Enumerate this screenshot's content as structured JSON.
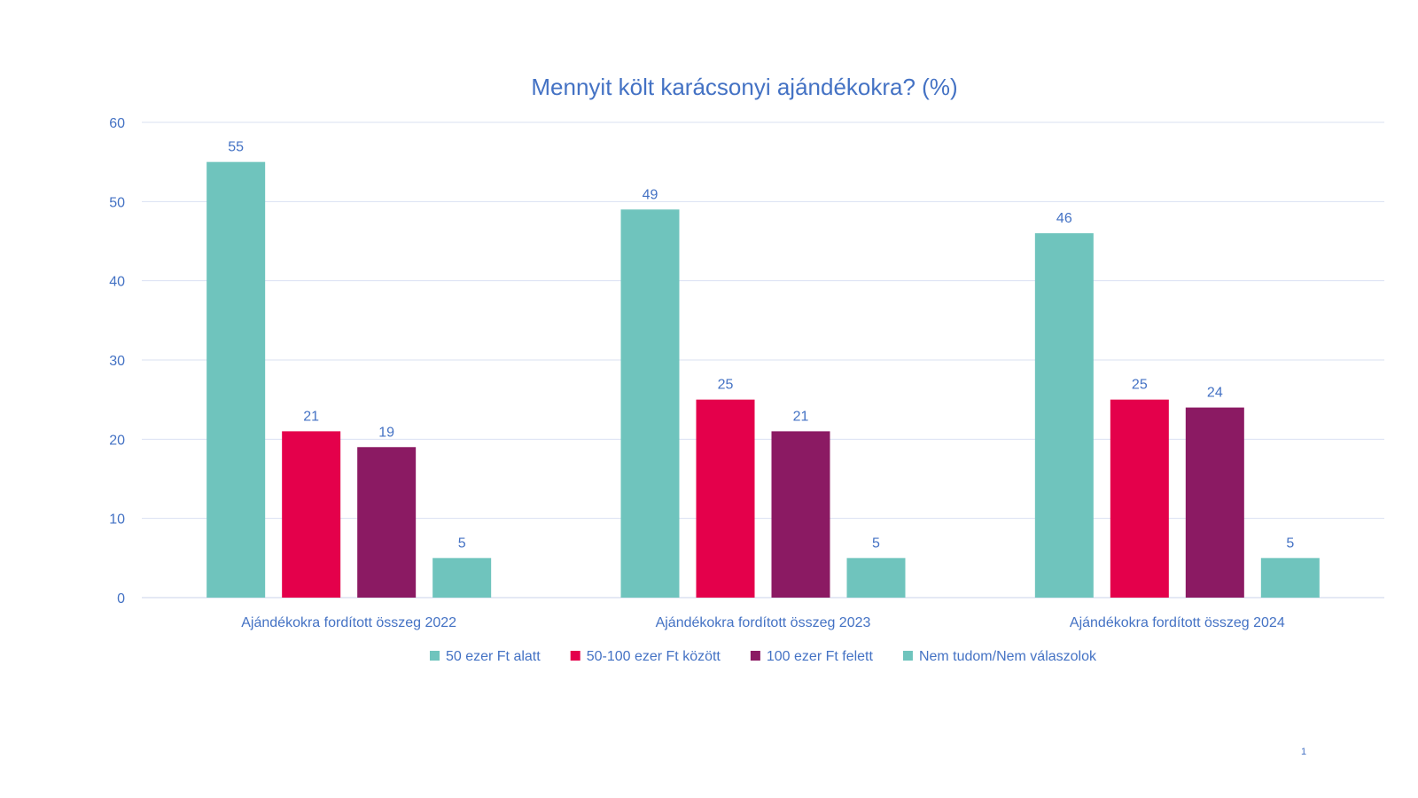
{
  "chart_data": {
    "type": "bar",
    "title": "Mennyit költ karácsonyi ajándékokra? (%)",
    "categories": [
      "Ajándékokra fordított összeg 2022",
      "Ajándékokra fordított összeg 2023",
      "Ajándékokra fordított összeg 2024"
    ],
    "series": [
      {
        "name": "50 ezer Ft alatt",
        "values": [
          55,
          49,
          46
        ],
        "color": "#6fc4bd"
      },
      {
        "name": "50-100 ezer Ft között",
        "values": [
          21,
          25,
          25
        ],
        "color": "#e4004b"
      },
      {
        "name": "100 ezer Ft felett",
        "values": [
          19,
          21,
          24
        ],
        "color": "#8b1a63"
      },
      {
        "name": "Nem tudom/Nem válaszolok",
        "values": [
          5,
          5,
          5
        ],
        "color": "#6fc4bd"
      }
    ],
    "ylim": [
      0,
      60
    ],
    "yticks": [
      0,
      10,
      20,
      30,
      40,
      50,
      60
    ],
    "grid": true,
    "legend": "bottom",
    "data_labels": true
  },
  "page_number": "1"
}
